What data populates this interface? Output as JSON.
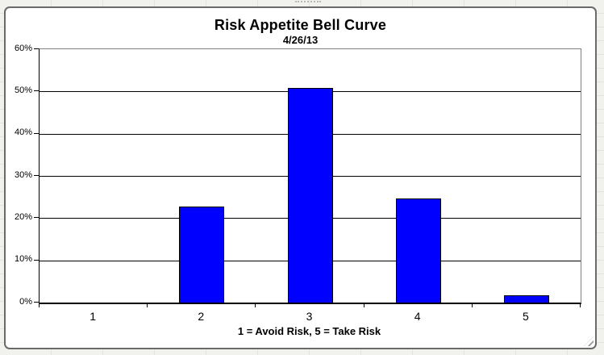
{
  "chart_data": {
    "type": "bar",
    "title": "Risk Appetite Bell Curve",
    "subtitle": "4/26/13",
    "categories": [
      "1",
      "2",
      "3",
      "4",
      "5"
    ],
    "values": [
      0,
      22.8,
      50.9,
      24.6,
      1.8
    ],
    "xlabel": "1 = Avoid Risk, 5 = Take Risk",
    "ylabel": "",
    "ylim": [
      0,
      60
    ],
    "ytick_step": 10,
    "ytick_labels": [
      "0%",
      "10%",
      "20%",
      "30%",
      "40%",
      "50%",
      "60%"
    ],
    "grid": true,
    "legend_position": "none",
    "bar_color": "#0000fe",
    "bar_border_color": "#000000"
  },
  "colors": {
    "axis": "#000000",
    "gridline": "#000000",
    "plot_border": "#808080",
    "window_border": "#6a6a6a",
    "sheet_background": "#f1f1ee",
    "sheet_gridline": "#dddddа"
  },
  "icons": {
    "resize_grip": "diagonal-resize-grip"
  }
}
